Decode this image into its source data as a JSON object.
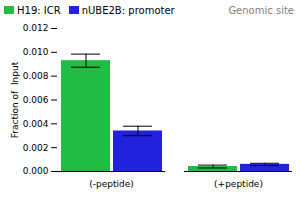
{
  "chart_data": {
    "type": "bar",
    "title": "Genomic site",
    "ylabel": "Fraction of  Input",
    "categories": [
      "(-peptide)",
      "(+peptide)"
    ],
    "series": [
      {
        "name": "H19: ICR",
        "color": "#22bb44",
        "values": [
          0.0093,
          0.00042
        ],
        "errors": [
          0.00055,
          0.00012
        ]
      },
      {
        "name": "nUBE2B: promoter",
        "color": "#2222dd",
        "values": [
          0.0034,
          0.0006
        ],
        "errors": [
          0.0004,
          9e-05
        ]
      }
    ],
    "ylim": [
      0,
      0.012
    ],
    "yticks": [
      {
        "value": 0,
        "label": "0.000"
      },
      0.002,
      0.004,
      0.006,
      0.008,
      {
        "value": 0.01,
        "label": "0.010"
      },
      0.012
    ],
    "grid": false,
    "legend": "upper right"
  }
}
